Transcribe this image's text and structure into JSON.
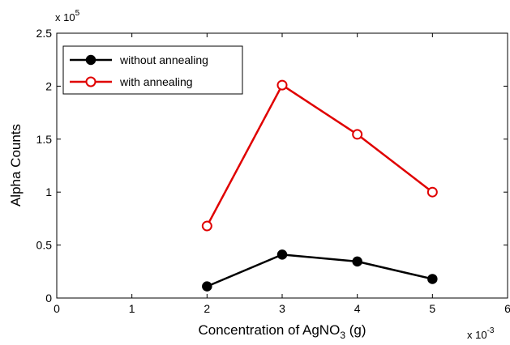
{
  "chart_data": {
    "type": "line",
    "xlabel": "Concentration of AgNO",
    "xlabel_subscript": "3",
    "xlabel_suffix": " (g)",
    "ylabel": "Alpha Counts",
    "x_multiplier": {
      "base": "x 10",
      "exponent": "-3"
    },
    "y_multiplier": {
      "base": "x 10",
      "exponent": "5"
    },
    "xlim": [
      0,
      6
    ],
    "ylim": [
      0,
      2.5
    ],
    "xticks": [
      0,
      1,
      2,
      3,
      4,
      5,
      6
    ],
    "yticks": [
      0,
      0.5,
      1,
      1.5,
      2,
      2.5
    ],
    "ytick_labels": [
      "0",
      "0.5",
      "1",
      "1.5",
      "2",
      "2.5"
    ],
    "grid": false,
    "legend_position": "top-left",
    "series": [
      {
        "name": "without annealing",
        "color": "#000000",
        "marker": "filled-circle",
        "x": [
          2,
          3,
          4,
          5
        ],
        "y": [
          0.11,
          0.41,
          0.345,
          0.18
        ]
      },
      {
        "name": "with annealing",
        "color": "#e00000",
        "marker": "open-circle",
        "x": [
          2,
          3,
          4,
          5
        ],
        "y": [
          0.68,
          2.01,
          1.545,
          1.0
        ]
      }
    ]
  }
}
